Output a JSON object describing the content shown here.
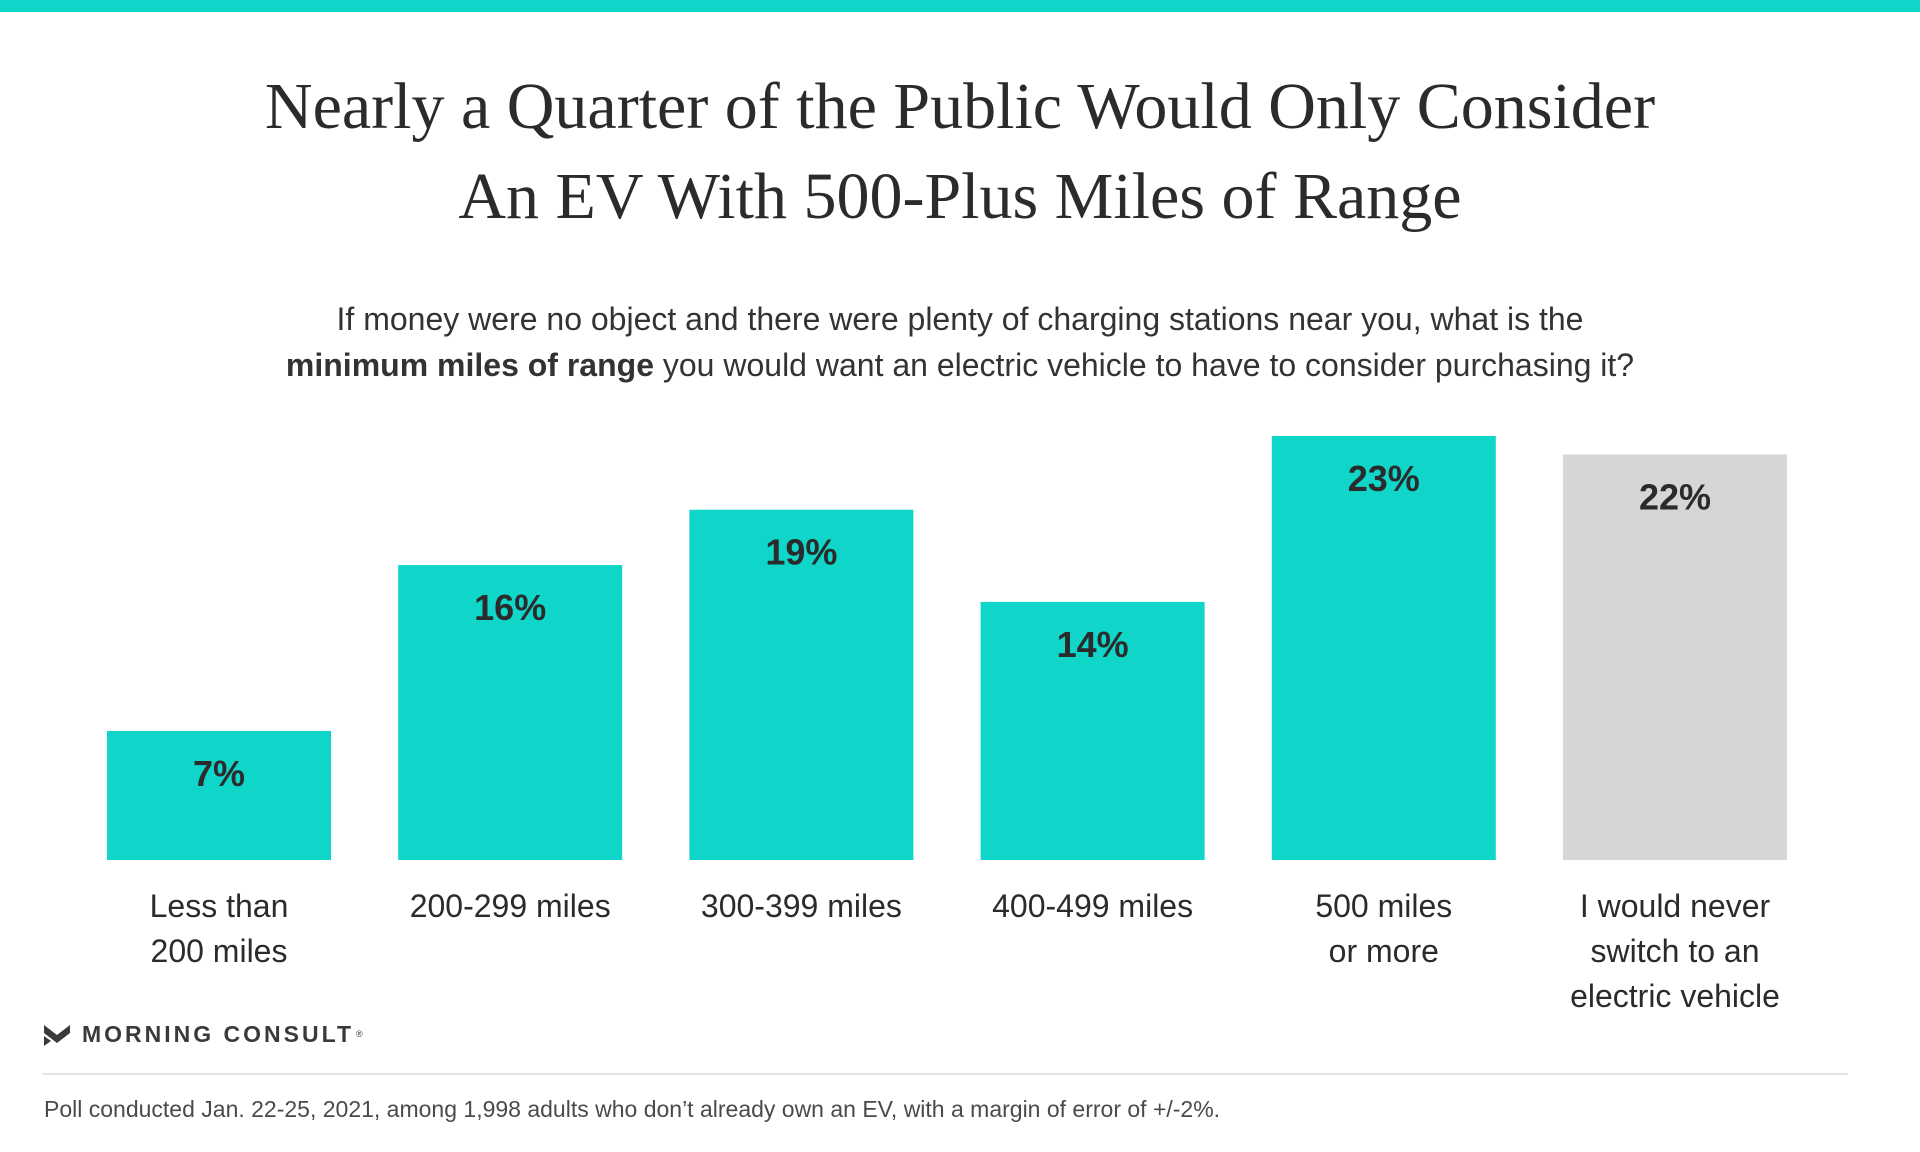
{
  "header": {
    "title_line1": "Nearly a Quarter of the Public Would Only Consider",
    "title_line2": "An EV With 500-Plus Miles of Range",
    "question_line1": "If money were no object and there were plenty of charging stations near you, what is the",
    "question_bold": "minimum miles of range",
    "question_rest": " you would want an electric vehicle to have to consider purchasing it?"
  },
  "colors": {
    "accent": "#10d5c9",
    "neutral_bar": "#d6d6d6",
    "text": "#2b2b2b"
  },
  "chart_data": {
    "type": "bar",
    "categories": [
      [
        "Less than",
        "200 miles"
      ],
      [
        "200-299 miles"
      ],
      [
        "300-399 miles"
      ],
      [
        "400-499 miles"
      ],
      [
        "500 miles",
        "or more"
      ],
      [
        "I would never",
        "switch to an",
        "electric vehicle"
      ]
    ],
    "values": [
      7,
      16,
      19,
      14,
      23,
      22
    ],
    "data_labels": [
      "7%",
      "16%",
      "19%",
      "14%",
      "23%",
      "22%"
    ],
    "bar_colors": [
      "#10d5c9",
      "#10d5c9",
      "#10d5c9",
      "#10d5c9",
      "#10d5c9",
      "#d6d6d6"
    ],
    "title": "Nearly a Quarter of the Public Would Only Consider An EV With 500-Plus Miles of Range",
    "xlabel": "",
    "ylabel": "",
    "ylim": [
      0,
      23
    ],
    "grid": false,
    "legend": "none"
  },
  "brand": {
    "logo_icon": "morning-consult-m-icon",
    "name": "MORNING CONSULT",
    "sup": "®"
  },
  "footnote": "Poll conducted Jan. 22-25, 2021, among 1,998 adults who don’t already own an EV, with a margin of error of +/-2%."
}
